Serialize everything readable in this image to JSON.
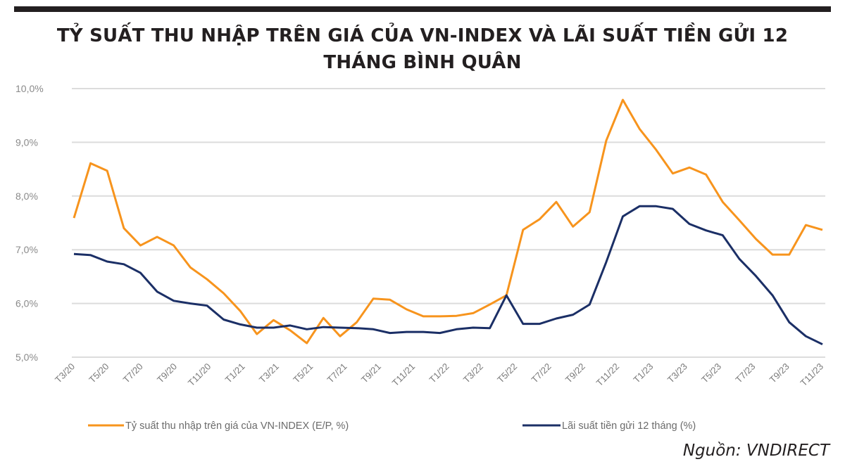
{
  "title_line1": "TỶ SUẤT THU NHẬP TRÊN GIÁ CỦA VN-INDEX VÀ LÃI SUẤT TIỀN GỬI 12",
  "title_line2": "THÁNG BÌNH QUÂN",
  "source": "Nguồn: VNDIRECT",
  "chart_data": {
    "type": "line",
    "title": "TỶ SUẤT THU NHẬP TRÊN GIÁ CỦA VN-INDEX VÀ LÃI SUẤT TIỀN GỬI 12 THÁNG BÌNH QUÂN",
    "xlabel": "",
    "ylabel": "",
    "ylim": [
      5.0,
      10.0
    ],
    "yticks": [
      5.0,
      6.0,
      7.0,
      8.0,
      9.0,
      10.0
    ],
    "ytick_labels": [
      "5,0%",
      "6,0%",
      "7,0%",
      "8,0%",
      "9,0%",
      "10,0%"
    ],
    "xtick_labels": [
      "T3/20",
      "T5/20",
      "T7/20",
      "T9/20",
      "T11/20",
      "T1/21",
      "T3/21",
      "T5/21",
      "T7/21",
      "T9/21",
      "T11/21",
      "T1/22",
      "T3/22",
      "T5/22",
      "T7/22",
      "T9/22",
      "T11/22",
      "T1/23",
      "T3/23",
      "T5/23",
      "T7/23",
      "T9/23",
      "T11/23"
    ],
    "grid": true,
    "legend_position": "bottom",
    "series": [
      {
        "name": "Tỷ suất thu nhập trên giá của VN-INDEX (E/P, %)",
        "color": "#f7941d",
        "values": [
          7.59,
          8.61,
          8.47,
          7.4,
          7.08,
          7.24,
          7.08,
          6.67,
          6.45,
          6.19,
          5.86,
          5.43,
          5.69,
          5.5,
          5.26,
          5.73,
          5.39,
          5.65,
          6.09,
          6.07,
          5.89,
          5.76,
          5.76,
          5.77,
          5.82,
          5.98,
          6.15,
          7.37,
          7.57,
          7.89,
          7.43,
          7.7,
          9.03,
          9.79,
          9.25,
          8.86,
          8.42,
          8.53,
          8.4,
          7.89,
          7.55,
          7.2,
          6.91,
          6.91,
          7.46,
          7.37
        ]
      },
      {
        "name": "Lãi suất tiền gửi 12 tháng (%)",
        "color": "#1b2f66",
        "values": [
          6.92,
          6.9,
          6.78,
          6.73,
          6.57,
          6.22,
          6.05,
          6.0,
          5.96,
          5.7,
          5.61,
          5.55,
          5.55,
          5.59,
          5.52,
          5.56,
          5.55,
          5.54,
          5.52,
          5.45,
          5.47,
          5.47,
          5.45,
          5.52,
          5.55,
          5.54,
          6.15,
          5.62,
          5.62,
          5.72,
          5.79,
          5.98,
          6.77,
          7.62,
          7.81,
          7.81,
          7.76,
          7.48,
          7.36,
          7.27,
          6.83,
          6.51,
          6.15,
          5.65,
          5.39,
          5.24
        ]
      }
    ]
  }
}
